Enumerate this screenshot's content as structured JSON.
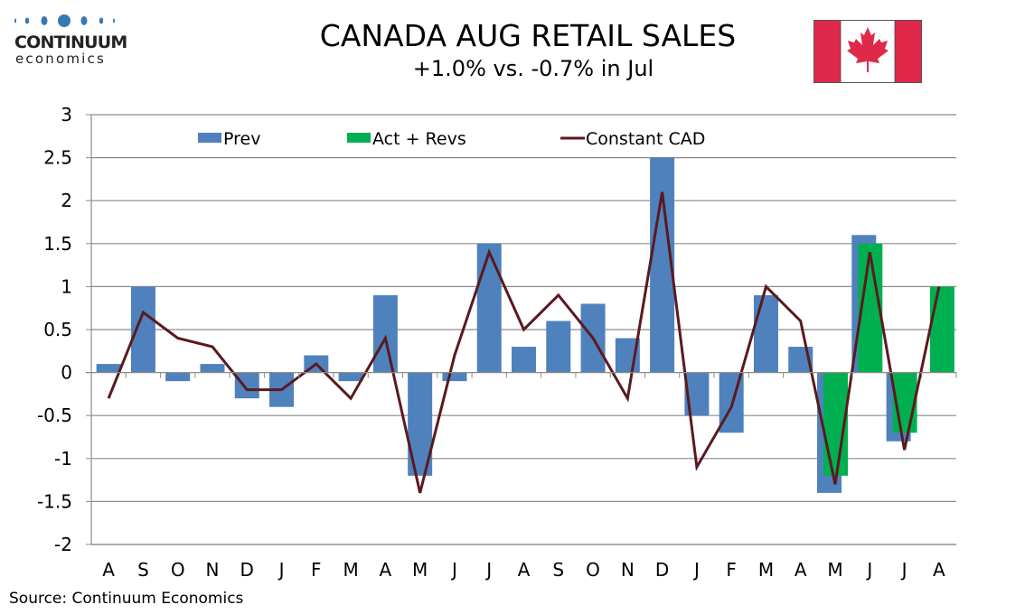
{
  "logo": {
    "text_top": "CONTINUUM",
    "text_bottom": "economics",
    "dot_color": "#3a78b0"
  },
  "flag": {
    "name": "canada-flag-icon",
    "red": "#e0294a",
    "white": "#ffffff"
  },
  "source": "Source: Continuum Economics",
  "chart_data": {
    "type": "bar",
    "title": "CANADA AUG RETAIL SALES",
    "subtitle": "+1.0% vs. -0.7% in Jul",
    "xlabel": "",
    "ylabel": "",
    "ylim": [
      -2,
      3
    ],
    "yticks": [
      3,
      2.5,
      2,
      1.5,
      1,
      0.5,
      0,
      -0.5,
      -1,
      -1.5,
      -2
    ],
    "ytick_labels": [
      "3",
      "2.5",
      "2",
      "1.5",
      "1",
      "0.5",
      "0",
      "-0.5",
      "-1",
      "-1.5",
      "-2"
    ],
    "grid": true,
    "legend_placement": "top",
    "categories": [
      "A",
      "S",
      "O",
      "N",
      "D",
      "J",
      "F",
      "M",
      "A",
      "M",
      "J",
      "J",
      "A",
      "S",
      "O",
      "N",
      "D",
      "J",
      "F",
      "M",
      "A",
      "M",
      "J",
      "J",
      "A"
    ],
    "series": [
      {
        "name": "Prev",
        "kind": "bar",
        "color": "#4f81bd",
        "values": [
          0.1,
          1.0,
          -0.1,
          0.1,
          -0.3,
          -0.4,
          0.2,
          -0.1,
          0.9,
          -1.2,
          -0.1,
          1.5,
          0.3,
          0.6,
          0.8,
          0.4,
          2.5,
          -0.5,
          -0.7,
          0.9,
          0.3,
          -1.4,
          1.6,
          -0.8,
          null
        ]
      },
      {
        "name": "Act + Revs",
        "kind": "bar",
        "color": "#00b050",
        "values": [
          null,
          null,
          null,
          null,
          null,
          null,
          null,
          null,
          null,
          null,
          null,
          null,
          null,
          null,
          null,
          null,
          null,
          null,
          null,
          null,
          null,
          -1.2,
          1.5,
          -0.7,
          1.0
        ]
      },
      {
        "name": "Constant CAD",
        "kind": "line",
        "color": "#5a1a1e",
        "values": [
          -0.3,
          0.7,
          0.4,
          0.3,
          -0.2,
          -0.2,
          0.1,
          -0.3,
          0.4,
          -1.4,
          0.2,
          1.4,
          0.5,
          0.9,
          0.4,
          -0.3,
          2.1,
          -1.1,
          -0.4,
          1.0,
          0.6,
          -1.3,
          1.4,
          -0.9,
          1.0
        ]
      }
    ]
  }
}
